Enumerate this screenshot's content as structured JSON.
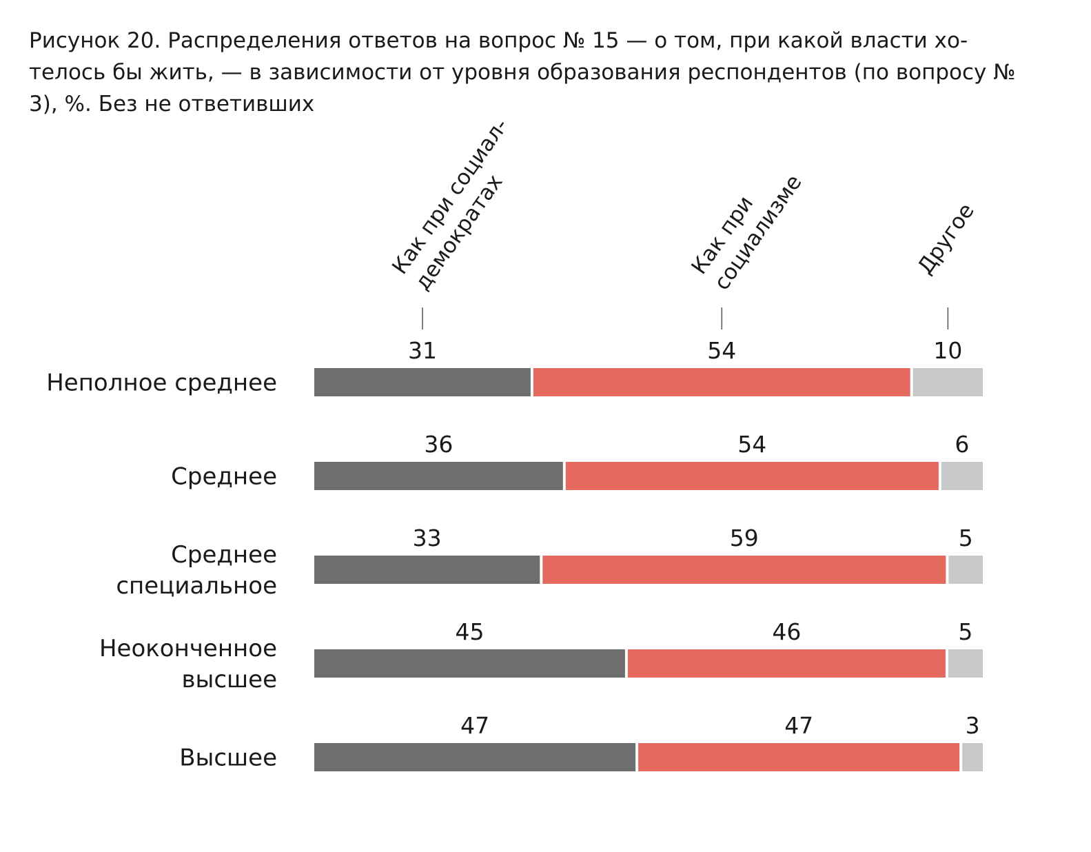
{
  "chart_data": {
    "type": "bar",
    "orientation": "horizontal",
    "stacked": true,
    "title": "Рисунок 20. Распределения ответов на вопрос № 15 — о том, при какой власти хо- телось бы жить, — в зависимости от уровня образования респондентов (по вопросу № 3), %. Без не ответивших",
    "categories": [
      [
        "Неполное среднее"
      ],
      [
        "Среднее"
      ],
      [
        "Среднее",
        "специальное"
      ],
      [
        "Неоконченное",
        "высшее"
      ],
      [
        "Высшее"
      ]
    ],
    "series": [
      {
        "name": "Как при социал-демократах",
        "name_lines": [
          "Как при социал-",
          "демократах"
        ],
        "color": "#6e6e6e",
        "values": [
          31,
          36,
          33,
          45,
          47
        ]
      },
      {
        "name": "Как при социализме",
        "name_lines": [
          "Как при",
          "социализме"
        ],
        "color": "#e4695e",
        "values": [
          54,
          54,
          59,
          46,
          47
        ]
      },
      {
        "name": "Другое",
        "name_lines": [
          "Другое"
        ],
        "color": "#c8c8c8",
        "values": [
          10,
          6,
          5,
          5,
          3
        ]
      }
    ],
    "legend": "series names rotated above the first bar",
    "grid": false
  }
}
